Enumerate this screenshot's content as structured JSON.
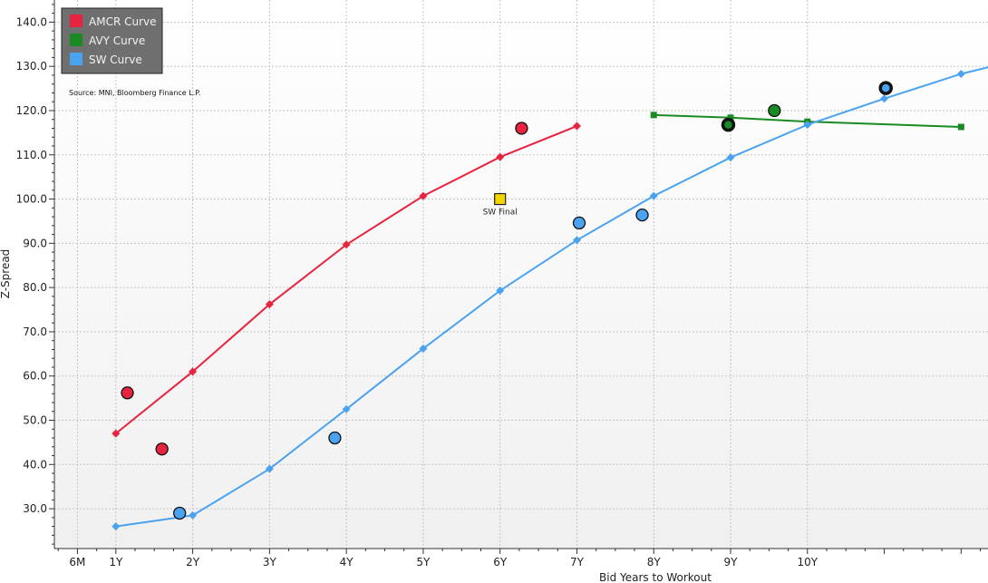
{
  "chart_data": {
    "type": "line",
    "xlabel": "Bid Years to Workout",
    "ylabel": "Z-Spread",
    "xlim": [
      0.2,
      12.35
    ],
    "ylim": [
      21,
      145
    ],
    "x_ticks": [
      {
        "value": 0.5,
        "label": "6M"
      },
      {
        "value": 1,
        "label": "1Y"
      },
      {
        "value": 2,
        "label": "2Y"
      },
      {
        "value": 3,
        "label": "3Y"
      },
      {
        "value": 4,
        "label": "4Y"
      },
      {
        "value": 5,
        "label": "5Y"
      },
      {
        "value": 6,
        "label": "6Y"
      },
      {
        "value": 7,
        "label": "7Y"
      },
      {
        "value": 8,
        "label": "8Y"
      },
      {
        "value": 9,
        "label": "9Y"
      },
      {
        "value": 10,
        "label": "10Y"
      }
    ],
    "y_ticks": [
      {
        "value": 30,
        "label": "30.0"
      },
      {
        "value": 40,
        "label": "40.0"
      },
      {
        "value": 50,
        "label": "50.0"
      },
      {
        "value": 60,
        "label": "60.0"
      },
      {
        "value": 70,
        "label": "70.0"
      },
      {
        "value": 80,
        "label": "80.0"
      },
      {
        "value": 90,
        "label": "90.0"
      },
      {
        "value": 100,
        "label": "100.0"
      },
      {
        "value": 110,
        "label": "110.0"
      },
      {
        "value": 120,
        "label": "120.0"
      },
      {
        "value": 130,
        "label": "130.0"
      },
      {
        "value": 140,
        "label": "140.0"
      }
    ],
    "grid": true,
    "legend_position": "top-left",
    "source_note": "Source: MNI, Bloomberg Finance L.P.",
    "series": [
      {
        "name": "AMCR Curve",
        "color": "#e8233f",
        "marker": "diamond",
        "points": [
          [
            1,
            47
          ],
          [
            2,
            61
          ],
          [
            3,
            76.2
          ],
          [
            4,
            89.7
          ],
          [
            5,
            100.7
          ],
          [
            6,
            109.5
          ],
          [
            7,
            116.5
          ]
        ]
      },
      {
        "name": "AVY Curve",
        "color": "#1a8a23",
        "marker": "square",
        "points": [
          [
            8,
            119
          ],
          [
            9,
            118.4
          ],
          [
            10,
            117.5
          ],
          [
            12,
            116.3
          ]
        ]
      },
      {
        "name": "SW Curve",
        "color": "#4aa3f0",
        "marker": "diamond",
        "points": [
          [
            1,
            26
          ],
          [
            2,
            28.5
          ],
          [
            3,
            39
          ],
          [
            4,
            52.5
          ],
          [
            5,
            66.2
          ],
          [
            6,
            79.3
          ],
          [
            7,
            90.7
          ],
          [
            8,
            100.7
          ],
          [
            9,
            109.4
          ],
          [
            10,
            116.8
          ],
          [
            11,
            122.7
          ],
          [
            12,
            128.3
          ],
          [
            12.35,
            129.8
          ]
        ]
      }
    ],
    "bonds": [
      {
        "x": 1.15,
        "y": 56.2,
        "color": "#e8233f",
        "outline": "thin"
      },
      {
        "x": 1.6,
        "y": 43.5,
        "color": "#e8233f",
        "outline": "thin"
      },
      {
        "x": 6.28,
        "y": 116,
        "color": "#e8233f",
        "outline": "thin"
      },
      {
        "x": 1.83,
        "y": 29,
        "color": "#4aa3f0",
        "outline": "thin"
      },
      {
        "x": 3.85,
        "y": 46,
        "color": "#4aa3f0",
        "outline": "thin"
      },
      {
        "x": 7.03,
        "y": 94.6,
        "color": "#4aa3f0",
        "outline": "thin"
      },
      {
        "x": 7.85,
        "y": 96.4,
        "color": "#4aa3f0",
        "outline": "thin"
      },
      {
        "x": 11.02,
        "y": 125.1,
        "color": "#4aa3f0",
        "outline": "thick"
      },
      {
        "x": 8.97,
        "y": 116.8,
        "color": "#1a8a23",
        "outline": "thick"
      },
      {
        "x": 9.57,
        "y": 120,
        "color": "#1a8a23",
        "outline": "thin"
      }
    ],
    "annotations": [
      {
        "x": 6,
        "y": 100,
        "label": "SW Final",
        "marker": "square",
        "color": "#f2d600"
      }
    ]
  }
}
